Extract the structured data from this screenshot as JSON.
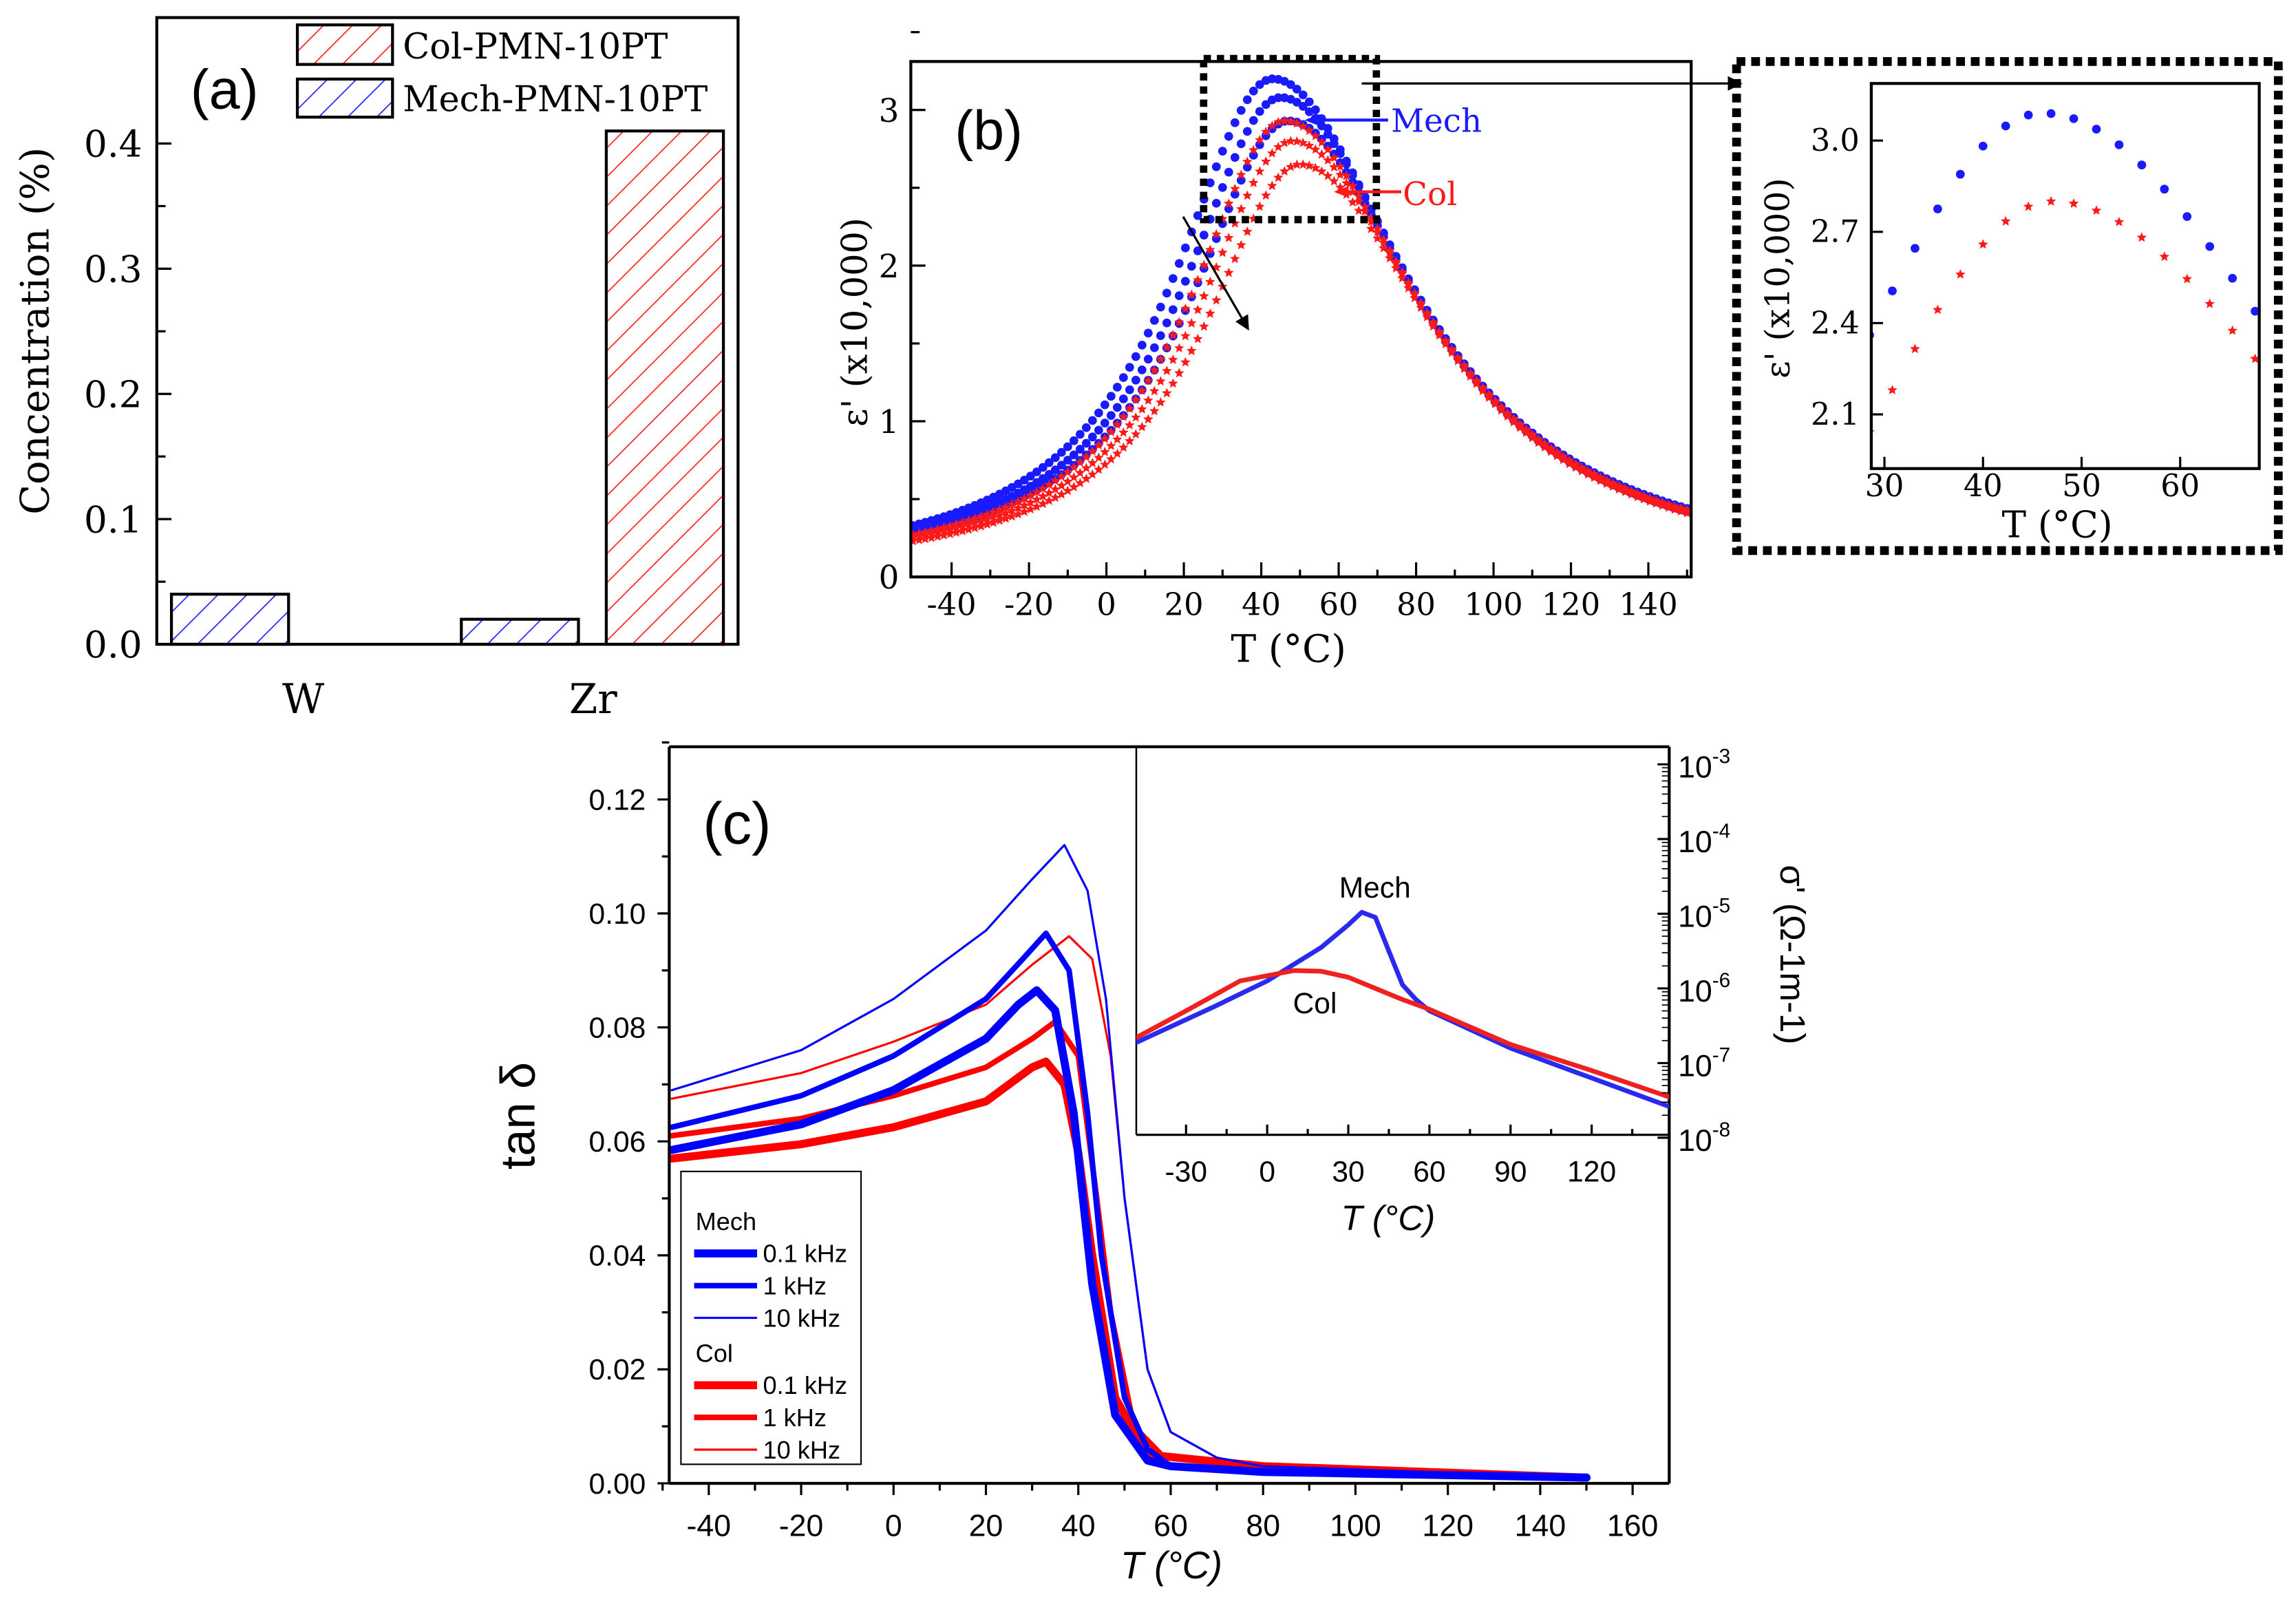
{
  "chart_data": [
    {
      "panel": "(a)",
      "type": "bar",
      "categories": [
        "W",
        "Zr"
      ],
      "series": [
        {
          "name": "Col-PMN-10PT",
          "color": "#ff2020",
          "values": [
            0.0,
            0.41
          ]
        },
        {
          "name": "Mech-PMN-10PT",
          "color": "#2020ff",
          "values": [
            0.04,
            0.02
          ]
        }
      ],
      "ylabel": "Concentration (%)",
      "ylim": [
        0,
        0.5
      ],
      "yticks": [
        "0.0",
        "0.1",
        "0.2",
        "0.3",
        "0.4"
      ],
      "legend": "top-right"
    },
    {
      "panel": "(b)",
      "type": "scatter",
      "xlabel": "T (°C)",
      "ylabel": "ε' (x10,000)",
      "xlim": [
        -50,
        152
      ],
      "ylim": [
        0,
        3.3
      ],
      "xticks": [
        "-40",
        "-20",
        "0",
        "20",
        "40",
        "60",
        "80",
        "100",
        "120",
        "140"
      ],
      "yticks": [
        "0",
        "1",
        "2",
        "3"
      ],
      "annotations": [
        "Mech",
        "Col"
      ],
      "series": [
        {
          "name": "Mech",
          "color": "#1a1aff",
          "marker": "circle",
          "peak_T": 43,
          "peak_value": 3.2,
          "value_at_-50": 0.33,
          "value_at_150": 0.44
        },
        {
          "name": "Mech",
          "color": "#1a1aff",
          "marker": "circle",
          "peak_T": 45,
          "peak_value": 3.08,
          "value_at_-50": 0.3,
          "value_at_150": 0.43
        },
        {
          "name": "Mech",
          "color": "#1a1aff",
          "marker": "circle",
          "peak_T": 47,
          "peak_value": 2.93,
          "value_at_-50": 0.28,
          "value_at_150": 0.42
        },
        {
          "name": "Col",
          "color": "#ff1a1a",
          "marker": "star",
          "peak_T": 46,
          "peak_value": 2.93,
          "value_at_-50": 0.27,
          "value_at_150": 0.43
        },
        {
          "name": "Col",
          "color": "#ff1a1a",
          "marker": "star",
          "peak_T": 48,
          "peak_value": 2.8,
          "value_at_-50": 0.25,
          "value_at_150": 0.42
        },
        {
          "name": "Col",
          "color": "#ff1a1a",
          "marker": "star",
          "peak_T": 50,
          "peak_value": 2.65,
          "value_at_-50": 0.23,
          "value_at_150": 0.41
        }
      ]
    },
    {
      "panel": "(b) inset",
      "type": "scatter",
      "xlabel": "T (°C)",
      "ylabel": "ε' (x10,000)",
      "xlim": [
        29,
        68
      ],
      "ylim": [
        2.0,
        3.2
      ],
      "xticks": [
        "30",
        "40",
        "50",
        "60"
      ],
      "yticks": [
        "2.1",
        "2.4",
        "2.7",
        "3.0"
      ],
      "series": [
        {
          "name": "Mech",
          "color": "#1a1aff",
          "marker": "circle",
          "peak_T": 46,
          "peak_value": 3.09,
          "value_at_-50": 0.3,
          "value_at_150": 0.43
        },
        {
          "name": "Col",
          "color": "#ff1a1a",
          "marker": "star",
          "peak_T": 47,
          "peak_value": 2.8,
          "value_at_-50": 0.25,
          "value_at_150": 0.42
        }
      ]
    },
    {
      "panel": "(c)",
      "type": "line",
      "xlabel": "T (°C)",
      "ylabel": "tan δ",
      "xlim": [
        -50,
        170
      ],
      "ylim": [
        0,
        0.13
      ],
      "xticks": [
        "-40",
        "-20",
        "0",
        "20",
        "40",
        "60",
        "80",
        "100",
        "120",
        "140",
        "160"
      ],
      "yticks": [
        "0.00",
        "0.02",
        "0.04",
        "0.06",
        "0.08",
        "0.10",
        "0.12"
      ],
      "legend": {
        "groups": [
          {
            "title": "Mech",
            "entries": [
              "0.1 kHz",
              "1 kHz",
              "10 kHz"
            ]
          },
          {
            "title": "Col",
            "entries": [
              "0.1 kHz",
              "1 kHz",
              "10 kHz"
            ]
          }
        ],
        "placement": "bottom-left"
      },
      "series": [
        {
          "name": "Mech 10 kHz",
          "color": "#0000ff",
          "weight": "thin",
          "x": [
            -48,
            -20,
            0,
            20,
            30,
            37,
            42,
            46,
            50,
            55,
            60,
            70,
            80,
            150
          ],
          "y": [
            0.069,
            0.076,
            0.085,
            0.097,
            0.106,
            0.112,
            0.104,
            0.085,
            0.05,
            0.02,
            0.009,
            0.0045,
            0.003,
            0.001
          ]
        },
        {
          "name": "Mech 1 kHz",
          "color": "#0000ff",
          "weight": "medium",
          "x": [
            -48,
            -20,
            0,
            20,
            28,
            33,
            38,
            42,
            45,
            50,
            55,
            60,
            80,
            150
          ],
          "y": [
            0.0625,
            0.068,
            0.075,
            0.085,
            0.092,
            0.0965,
            0.09,
            0.065,
            0.04,
            0.015,
            0.006,
            0.003,
            0.002,
            0.001
          ]
        },
        {
          "name": "Mech 0.1 kHz",
          "color": "#0000ff",
          "weight": "thick",
          "x": [
            -48,
            -20,
            0,
            20,
            27,
            31,
            35,
            39,
            43,
            48,
            55,
            60,
            80,
            150
          ],
          "y": [
            0.0585,
            0.063,
            0.069,
            0.078,
            0.084,
            0.0865,
            0.083,
            0.065,
            0.035,
            0.012,
            0.004,
            0.003,
            0.002,
            0.001
          ]
        },
        {
          "name": "Col 10 kHz",
          "color": "#ff0000",
          "weight": "thin",
          "x": [
            -48,
            -20,
            0,
            20,
            30,
            38,
            43,
            47,
            50,
            55,
            60,
            70,
            80,
            150
          ],
          "y": [
            0.0675,
            0.072,
            0.0775,
            0.084,
            0.091,
            0.096,
            0.092,
            0.075,
            0.05,
            0.02,
            0.009,
            0.0045,
            0.003,
            0.001
          ]
        },
        {
          "name": "Col 1 kHz",
          "color": "#ff0000",
          "weight": "medium",
          "x": [
            -48,
            -20,
            0,
            20,
            30,
            35,
            40,
            44,
            47,
            52,
            58,
            80,
            150
          ],
          "y": [
            0.061,
            0.064,
            0.068,
            0.073,
            0.078,
            0.081,
            0.075,
            0.05,
            0.03,
            0.01,
            0.005,
            0.003,
            0.001
          ]
        },
        {
          "name": "Col 0.1 kHz",
          "color": "#ff0000",
          "weight": "thick",
          "x": [
            -48,
            -20,
            0,
            20,
            30,
            33,
            37,
            40,
            43,
            48,
            55,
            80,
            150
          ],
          "y": [
            0.057,
            0.0595,
            0.0625,
            0.067,
            0.073,
            0.074,
            0.07,
            0.058,
            0.04,
            0.015,
            0.005,
            0.003,
            0.001
          ]
        }
      ]
    },
    {
      "panel": "(c) inset",
      "type": "line",
      "xlabel": "T (°C)",
      "ylabel": "σ' (Ω-1m-1)",
      "yscale": "log",
      "xlim": [
        -50,
        150
      ],
      "ylim_log10": [
        -8,
        -3
      ],
      "xticks": [
        "-30",
        "0",
        "30",
        "60",
        "90",
        "120"
      ],
      "yticks_exponent": [
        "-3",
        "-4",
        "-5",
        "-6",
        "-7",
        "-8"
      ],
      "ytick_base": "10",
      "annotations": [
        "Mech",
        "Col"
      ],
      "series": [
        {
          "name": "Mech",
          "color": "#2a2aee",
          "x": [
            -50,
            -20,
            0,
            20,
            30,
            35,
            40,
            45,
            50,
            55,
            60,
            90,
            120,
            150
          ],
          "log10_y": [
            -6.75,
            -6.25,
            -5.9,
            -5.45,
            -5.15,
            -4.98,
            -5.05,
            -5.5,
            -5.95,
            -6.15,
            -6.3,
            -6.8,
            -7.2,
            -7.6
          ]
        },
        {
          "name": "Col",
          "color": "#ee2020",
          "x": [
            -50,
            -30,
            -10,
            10,
            20,
            30,
            40,
            50,
            60,
            90,
            120,
            150
          ],
          "log10_y": [
            -6.69,
            -6.3,
            -5.9,
            -5.76,
            -5.77,
            -5.85,
            -6.0,
            -6.15,
            -6.28,
            -6.75,
            -7.1,
            -7.47
          ]
        }
      ]
    }
  ]
}
